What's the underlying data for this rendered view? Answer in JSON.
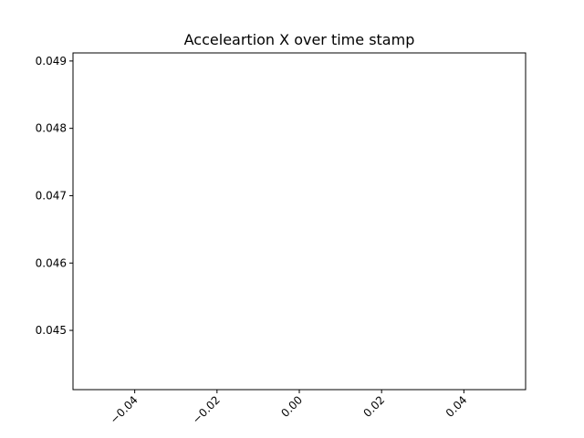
{
  "chart_data": {
    "type": "line",
    "title": "Acceleartion X over time stamp",
    "xlabel": "",
    "ylabel": "",
    "xlim": [
      -0.055,
      0.055
    ],
    "ylim": [
      0.04412,
      0.04912
    ],
    "x_ticks": [
      -0.04,
      -0.02,
      0.0,
      0.02,
      0.04
    ],
    "x_tick_labels": [
      "−0.04",
      "−0.02",
      "0.00",
      "0.02",
      "0.04"
    ],
    "y_ticks": [
      0.045,
      0.046,
      0.047,
      0.048,
      0.049
    ],
    "y_tick_labels": [
      "0.045",
      "0.046",
      "0.047",
      "0.048",
      "0.049"
    ],
    "x_tick_rotation_deg": 45,
    "grid": false,
    "legend": "none",
    "series": [
      {
        "x": [],
        "y": []
      }
    ],
    "colors": {
      "axes": "#000000",
      "background": "#ffffff",
      "line": "#1f77b4"
    }
  }
}
